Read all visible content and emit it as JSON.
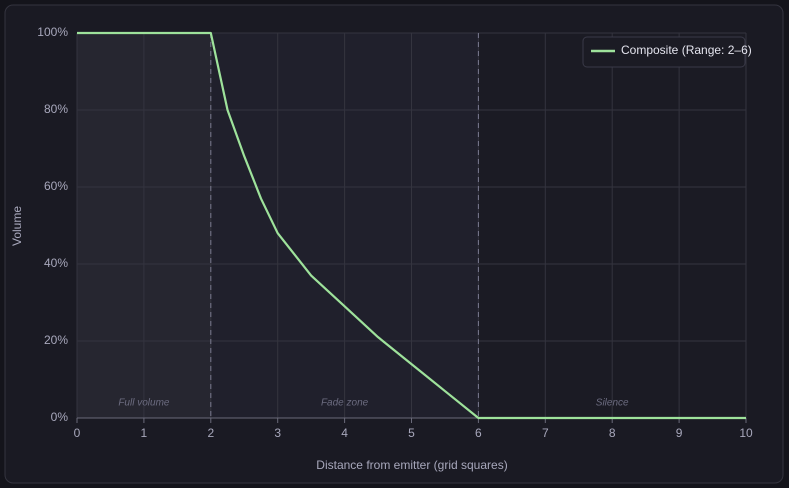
{
  "chart_data": {
    "type": "line",
    "x_label": "Distance from emitter (grid squares)",
    "y_label": "Volume",
    "x": [
      0,
      2,
      2.25,
      2.5,
      2.75,
      3,
      3.5,
      4,
      4.5,
      5,
      5.5,
      6,
      10
    ],
    "series": [
      {
        "name": "Composite (Range: 2–6)",
        "color": "#9ee29b",
        "values": [
          100,
          100,
          80,
          68,
          57,
          48,
          37,
          29,
          21,
          14,
          7,
          0,
          0
        ]
      }
    ],
    "zones": [
      {
        "label": "Full volume",
        "start": 0,
        "end": 2,
        "color": "#262630"
      },
      {
        "label": "Fade zone",
        "start": 2,
        "end": 6,
        "color": "#20202c"
      },
      {
        "label": "Silence",
        "start": 6,
        "end": 10,
        "color": "#1b1b24"
      }
    ],
    "xlim": [
      0,
      10
    ],
    "xticks": [
      0,
      1,
      2,
      3,
      4,
      5,
      6,
      7,
      8,
      9,
      10
    ],
    "ylim": [
      0,
      100
    ],
    "yticks": [
      {
        "value": 0,
        "label": "0%"
      },
      {
        "value": 20,
        "label": "20%"
      },
      {
        "value": 40,
        "label": "40%"
      },
      {
        "value": 60,
        "label": "60%"
      },
      {
        "value": 80,
        "label": "80%"
      },
      {
        "value": 100,
        "label": "100%"
      }
    ],
    "grid": true,
    "legend": "top-right"
  }
}
